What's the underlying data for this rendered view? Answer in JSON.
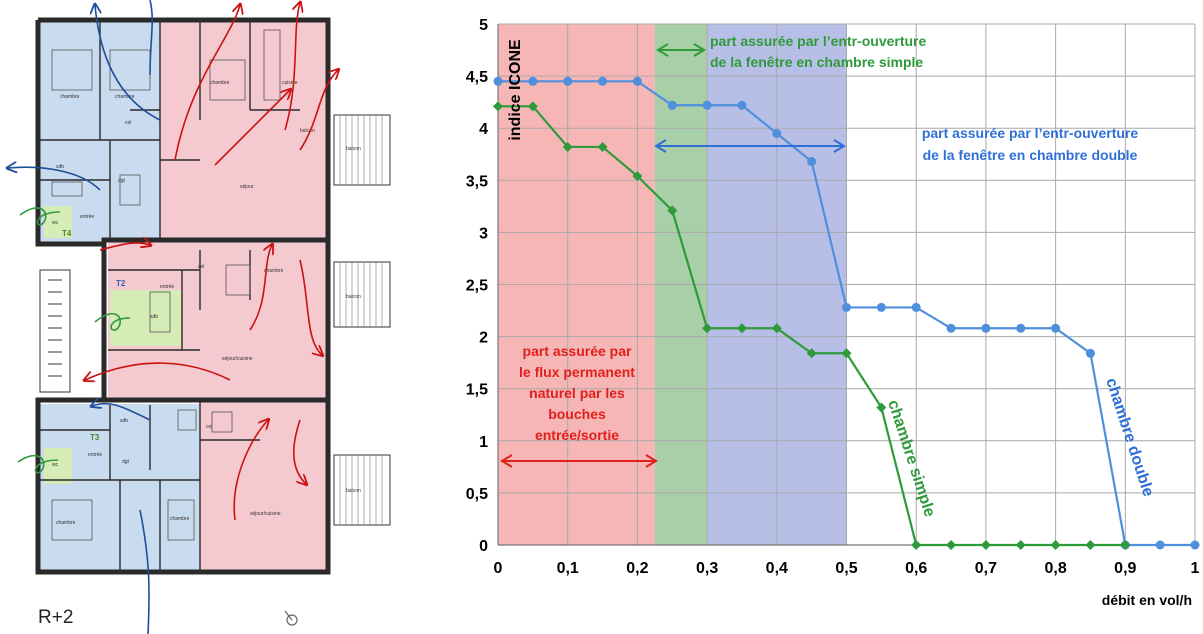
{
  "floor_plan": {
    "level_label": "R+2",
    "apartment_labels": [
      "T4",
      "T2",
      "T3"
    ],
    "room_labels": [
      "chambre",
      "chambre",
      "chambre",
      "cuisine",
      "séjour",
      "séjour/cuisine",
      "séjour/cuisine",
      "chambre",
      "chambre",
      "chambre",
      "sdb",
      "sdb",
      "sdb",
      "wc",
      "wc",
      "dgt",
      "dgt",
      "entrée",
      "entrée",
      "entrée",
      "cel",
      "cel",
      "cel",
      "balcon",
      "balcon",
      "balcon",
      "balcon"
    ]
  },
  "chart_data": {
    "type": "line",
    "ylabel": "indice ICONE",
    "xlabel": "débit en vol/h",
    "xlim": [
      0,
      1
    ],
    "ylim": [
      0,
      5
    ],
    "grid": true,
    "x_ticks": [
      "0",
      "0,1",
      "0,2",
      "0,3",
      "0,4",
      "0,5",
      "0,6",
      "0,7",
      "0,8",
      "0,9",
      "1"
    ],
    "y_ticks": [
      "0",
      "0,5",
      "1",
      "1,5",
      "2",
      "2,5",
      "3",
      "3,5",
      "4",
      "4,5",
      "5"
    ],
    "series": [
      {
        "name": "chambre double",
        "color": "#4f8fdc",
        "x": [
          0,
          0.05,
          0.1,
          0.15,
          0.2,
          0.25,
          0.3,
          0.35,
          0.4,
          0.45,
          0.5,
          0.55,
          0.6,
          0.65,
          0.7,
          0.75,
          0.8,
          0.85,
          0.9,
          0.95,
          1
        ],
        "y": [
          4.45,
          4.45,
          4.45,
          4.45,
          4.45,
          4.22,
          4.22,
          4.22,
          3.95,
          3.68,
          2.28,
          2.28,
          2.28,
          2.08,
          2.08,
          2.08,
          2.08,
          1.84,
          0,
          0,
          0
        ]
      },
      {
        "name": "chambre simple",
        "color": "#2e9a3a",
        "x": [
          0,
          0.05,
          0.1,
          0.15,
          0.2,
          0.25,
          0.3,
          0.35,
          0.4,
          0.45,
          0.5,
          0.55,
          0.6,
          0.65,
          0.7,
          0.75,
          0.8,
          0.85,
          0.9
        ],
        "y": [
          4.21,
          4.21,
          3.82,
          3.82,
          3.54,
          3.21,
          2.08,
          2.08,
          2.08,
          1.84,
          1.84,
          1.32,
          0,
          0,
          0,
          0,
          0,
          0,
          0
        ]
      }
    ],
    "bands": [
      {
        "from": 0,
        "to": 0.225,
        "color": "#f7b6b6"
      },
      {
        "from": 0.225,
        "to": 0.3,
        "color": "#a9cfa9"
      },
      {
        "from": 0.3,
        "to": 0.5,
        "color": "#b7bfe6"
      }
    ],
    "annotations": [
      {
        "id": "red",
        "lines": [
          "part assurée par",
          "le flux permanent",
          "naturel par les",
          "bouches",
          "entrée/sortie"
        ],
        "color": "#e0201c"
      },
      {
        "id": "green",
        "lines": [
          "part assurée par l’entr-ouverture",
          "de la fenêtre en chambre simple"
        ],
        "color": "#2e9a3a"
      },
      {
        "id": "blue",
        "lines": [
          "part assurée par l’entr-ouverture",
          "de la fenêtre en chambre double"
        ],
        "color": "#2f6fd6"
      }
    ],
    "curve_labels": [
      {
        "text": "chambre simple",
        "color": "#2e9a3a"
      },
      {
        "text": "chambre double",
        "color": "#2f6fd6"
      }
    ]
  }
}
